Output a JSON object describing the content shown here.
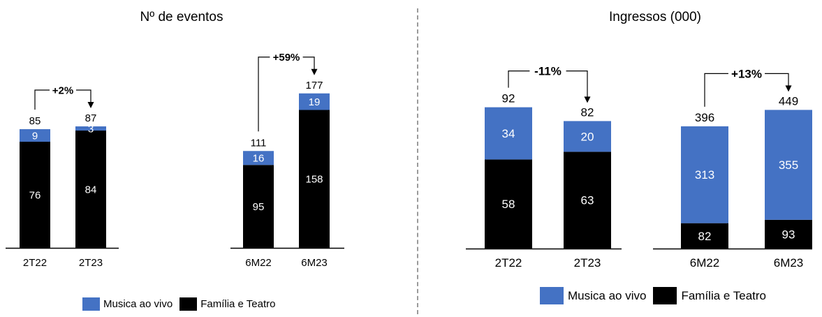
{
  "colors": {
    "live_music": "#4472C4",
    "family_theatre": "#000000"
  },
  "legend": {
    "live_music": "Musica ao vivo",
    "family_theatre": "Família e Teatro"
  },
  "chart_data": [
    {
      "type": "bar",
      "stacked": true,
      "title": "Nº de eventos",
      "groups": [
        {
          "categories": [
            "2T22",
            "2T23"
          ],
          "series": [
            {
              "name": "Família e Teatro",
              "values": [
                76,
                84
              ]
            },
            {
              "name": "Musica ao vivo",
              "values": [
                9,
                3
              ]
            }
          ],
          "totals": [
            85,
            87
          ],
          "change": "+2%"
        },
        {
          "categories": [
            "6M22",
            "6M23"
          ],
          "series": [
            {
              "name": "Família e Teatro",
              "values": [
                95,
                158
              ]
            },
            {
              "name": "Musica ao vivo",
              "values": [
                16,
                19
              ]
            }
          ],
          "totals": [
            111,
            177
          ],
          "change": "+59%"
        }
      ]
    },
    {
      "type": "bar",
      "stacked": true,
      "title": "Ingressos (000)",
      "groups": [
        {
          "categories": [
            "2T22",
            "2T23"
          ],
          "series": [
            {
              "name": "Família e Teatro",
              "values": [
                58,
                63
              ]
            },
            {
              "name": "Musica ao vivo",
              "values": [
                34,
                20
              ]
            }
          ],
          "totals": [
            92,
            82
          ],
          "change": "-11%"
        },
        {
          "categories": [
            "6M22",
            "6M23"
          ],
          "series": [
            {
              "name": "Família e Teatro",
              "values": [
                82,
                93
              ]
            },
            {
              "name": "Musica ao vivo",
              "values": [
                313,
                355
              ]
            }
          ],
          "totals": [
            396,
            449
          ],
          "change": "+13%"
        }
      ]
    }
  ]
}
